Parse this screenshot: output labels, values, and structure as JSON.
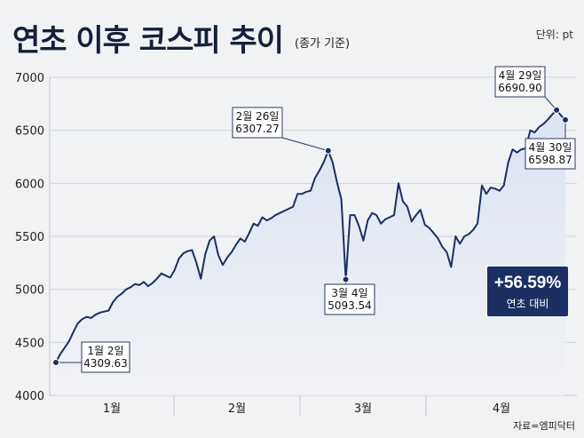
{
  "header": {
    "title": "연초 이후 코스피 추이",
    "subtitle": "(종가 기준)",
    "unit": "단위: pt"
  },
  "source": "자료=엠피닥터",
  "badge": {
    "value": "+56.59%",
    "label": "연초 대비"
  },
  "colors": {
    "line": "#1b2f63",
    "area": "#dbe3f3",
    "badge": "#1b2f63"
  },
  "chart_data": {
    "type": "area",
    "title": "연초 이후 코스피 추이",
    "xlabel": "",
    "ylabel": "",
    "ylim": [
      4000,
      7000
    ],
    "yticks": [
      4000,
      4500,
      5000,
      5500,
      6000,
      6500,
      7000
    ],
    "grid": true,
    "month_labels": [
      "1월",
      "2월",
      "3월",
      "4월"
    ],
    "values": [
      4309.63,
      4390,
      4450,
      4510,
      4600,
      4680,
      4720,
      4740,
      4730,
      4760,
      4780,
      4790,
      4800,
      4880,
      4930,
      4960,
      5000,
      5020,
      5050,
      5040,
      5070,
      5030,
      5060,
      5100,
      5150,
      5130,
      5110,
      5180,
      5290,
      5340,
      5360,
      5370,
      5250,
      5100,
      5330,
      5460,
      5500,
      5320,
      5230,
      5300,
      5350,
      5420,
      5480,
      5450,
      5530,
      5620,
      5600,
      5680,
      5650,
      5670,
      5700,
      5720,
      5740,
      5760,
      5780,
      5900,
      5900,
      5920,
      5930,
      6050,
      6120,
      6200,
      6307.27,
      6200,
      6010,
      5850,
      5093.54,
      5700,
      5700,
      5600,
      5460,
      5650,
      5720,
      5700,
      5620,
      5660,
      5680,
      5700,
      6000,
      5830,
      5780,
      5640,
      5700,
      5750,
      5610,
      5580,
      5530,
      5480,
      5400,
      5350,
      5210,
      5500,
      5430,
      5500,
      5520,
      5560,
      5620,
      5980,
      5900,
      5960,
      5950,
      5930,
      5980,
      6200,
      6320,
      6290,
      6320,
      6330,
      6500,
      6480,
      6530,
      6560,
      6600,
      6650,
      6690.9,
      6640,
      6598.87
    ],
    "annotations": [
      {
        "date": "1월 2일",
        "value": "4309.63"
      },
      {
        "date": "2월 26일",
        "value": "6307.27"
      },
      {
        "date": "3월 4일",
        "value": "5093.54"
      },
      {
        "date": "4월 29일",
        "value": "6690.90"
      },
      {
        "date": "4월 30일",
        "value": "6598.87"
      }
    ]
  }
}
